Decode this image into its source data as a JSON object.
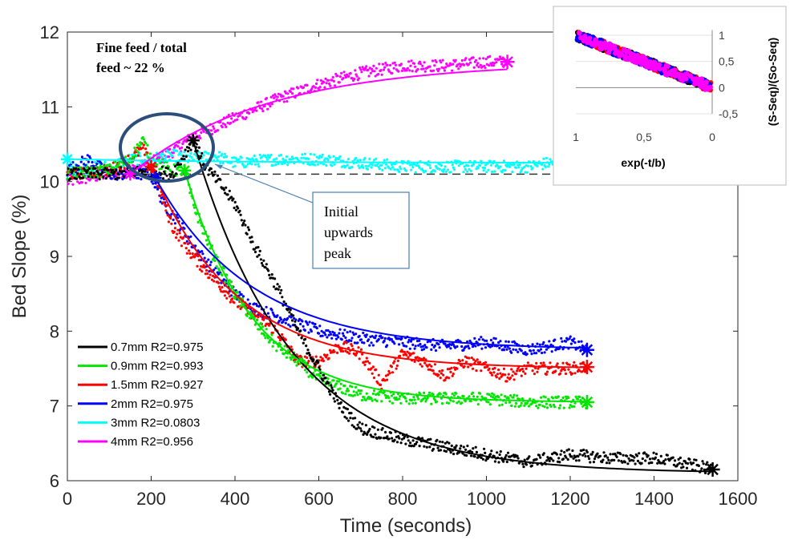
{
  "chart_data": {
    "type": "scatter",
    "xlabel": "Time (seconds)",
    "ylabel": "Bed Slope (%)",
    "xlim": [
      0,
      1600
    ],
    "ylim": [
      6,
      12
    ],
    "xticks": [
      "0",
      "200",
      "400",
      "600",
      "800",
      "1000",
      "1200",
      "1400",
      "1600"
    ],
    "yticks": [
      "6",
      "7",
      "8",
      "9",
      "10",
      "11",
      "12"
    ],
    "reference_line": {
      "y": 10.1,
      "style": "dashed"
    },
    "annotation_note": [
      "Fine feed / total",
      "feed ~ 22 %"
    ],
    "callout": [
      "Initial",
      "upwards",
      "peak"
    ],
    "series": [
      {
        "name": "0.7mm R2=0.975",
        "color": "#000000",
        "x": [
          0,
          100,
          200,
          250,
          300,
          330,
          360,
          400,
          450,
          500,
          550,
          600,
          650,
          700,
          800,
          900,
          1000,
          1100,
          1200,
          1300,
          1400,
          1500,
          1540
        ],
        "y": [
          10.1,
          10.1,
          10.15,
          10.1,
          10.55,
          10.2,
          10.0,
          9.7,
          9.1,
          8.6,
          8.0,
          7.5,
          7.0,
          6.7,
          6.55,
          6.45,
          6.35,
          6.25,
          6.35,
          6.3,
          6.3,
          6.2,
          6.15
        ],
        "fit": {
          "t0": 300,
          "y0": 10.55,
          "yeq": 6.1,
          "b": 235
        }
      },
      {
        "name": "0.9mm R2=0.993",
        "color": "#00e600",
        "x": [
          0,
          100,
          150,
          180,
          200,
          250,
          280,
          300,
          350,
          400,
          450,
          500,
          550,
          600,
          700,
          800,
          900,
          1000,
          1100,
          1200,
          1240
        ],
        "y": [
          10.1,
          10.15,
          10.3,
          10.55,
          10.3,
          10.15,
          10.15,
          9.7,
          9.0,
          8.5,
          8.1,
          7.8,
          7.6,
          7.35,
          7.15,
          7.1,
          7.1,
          7.1,
          7.05,
          7.05,
          7.05
        ],
        "fit": {
          "t0": 280,
          "y0": 10.15,
          "yeq": 7.05,
          "b": 160
        }
      },
      {
        "name": "1.5mm R2=0.927",
        "color": "#ff0000",
        "x": [
          0,
          100,
          150,
          180,
          200,
          220,
          250,
          300,
          350,
          400,
          450,
          500,
          550,
          600,
          650,
          700,
          750,
          800,
          850,
          900,
          950,
          1000,
          1050,
          1100,
          1150,
          1200,
          1240
        ],
        "y": [
          10.1,
          10.15,
          10.3,
          10.45,
          10.2,
          9.9,
          9.4,
          9.0,
          8.7,
          8.4,
          8.2,
          8.0,
          7.6,
          7.6,
          7.8,
          7.7,
          7.3,
          7.7,
          7.6,
          7.4,
          7.6,
          7.5,
          7.4,
          7.5,
          7.5,
          7.5,
          7.52
        ],
        "fit": {
          "t0": 200,
          "y0": 10.2,
          "yeq": 7.5,
          "b": 200
        }
      },
      {
        "name": "2mm    R2=0.975",
        "color": "#0000ff",
        "x": [
          0,
          50,
          100,
          150,
          200,
          230,
          260,
          300,
          350,
          400,
          450,
          500,
          550,
          600,
          700,
          800,
          900,
          1000,
          1100,
          1200,
          1240
        ],
        "y": [
          10.15,
          10.3,
          10.1,
          10.1,
          10.1,
          9.7,
          9.5,
          9.15,
          8.8,
          8.5,
          8.3,
          8.2,
          8.1,
          8.0,
          7.9,
          7.85,
          7.8,
          7.85,
          7.75,
          7.85,
          7.75
        ],
        "fit": {
          "t0": 210,
          "y0": 10.05,
          "yeq": 7.75,
          "b": 230
        }
      },
      {
        "name": "3mm    R2=0.0803",
        "color": "#00ffff",
        "x": [
          0,
          100,
          150,
          200,
          250,
          300,
          350,
          400,
          500,
          600,
          700,
          800,
          900,
          1000,
          1100,
          1200,
          1240
        ],
        "y": [
          10.15,
          10.2,
          10.3,
          10.3,
          10.35,
          10.3,
          10.35,
          10.25,
          10.3,
          10.3,
          10.25,
          10.2,
          10.2,
          10.2,
          10.2,
          10.3,
          10.25
        ],
        "fit": {
          "t0": 0,
          "y0": 10.3,
          "yeq": 10.25,
          "b": 400
        }
      },
      {
        "name": "4mm    R2=0.956",
        "color": "#ff00ff",
        "x": [
          0,
          100,
          150,
          200,
          250,
          300,
          400,
          500,
          600,
          700,
          800,
          900,
          1000,
          1050
        ],
        "y": [
          10.0,
          10.1,
          10.15,
          10.25,
          10.4,
          10.6,
          10.85,
          11.1,
          11.3,
          11.45,
          11.55,
          11.55,
          11.6,
          11.6
        ],
        "fit": {
          "t0": 150,
          "y0": 10.1,
          "yeq": 11.6,
          "b": 330
        }
      }
    ],
    "inset": {
      "xlabel": "exp(-t/b)",
      "ylabel": "(S-Seq)/(So-Seq)",
      "xticks": [
        "1",
        "0,5",
        "0"
      ],
      "yticks": [
        "1",
        "0,5",
        "0",
        "-0,5"
      ],
      "xlim": [
        1,
        0
      ],
      "ylim": [
        -0.5,
        1
      ]
    }
  }
}
